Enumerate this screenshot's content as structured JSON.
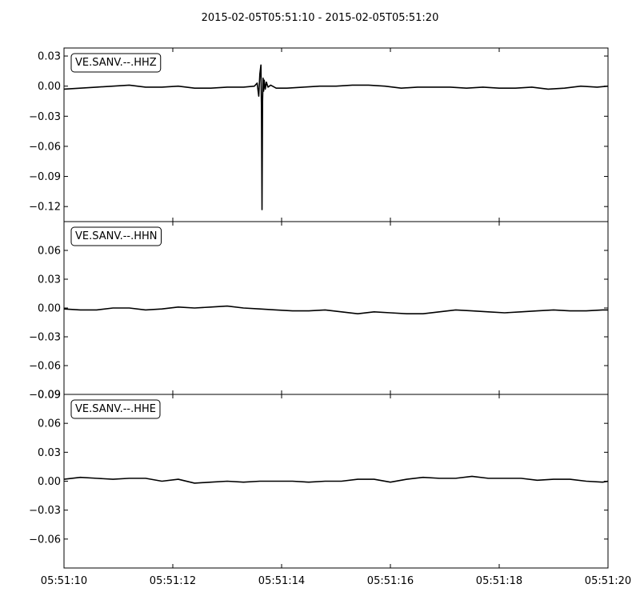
{
  "figure": {
    "title": "2015-02-05T05:51:10  -  2015-02-05T05:51:20",
    "x_tick_labels": [
      "05:51:10",
      "05:51:12",
      "05:51:14",
      "05:51:16",
      "05:51:18",
      "05:51:20"
    ]
  },
  "chart_data": [
    {
      "type": "line",
      "label": "VE.SANV.--.HHZ",
      "ylim": [
        -0.135,
        0.038
      ],
      "y_ticks": [
        0.03,
        0.0,
        -0.03,
        -0.06,
        -0.09,
        -0.12
      ],
      "y_tick_labels": [
        "0.03",
        "0.00",
        "−0.03",
        "−0.06",
        "−0.09",
        "−0.12"
      ],
      "xlim": [
        0,
        10
      ],
      "grid": false,
      "series": [
        {
          "color": "#000000",
          "x": [
            0,
            0.3,
            0.6,
            0.9,
            1.2,
            1.5,
            1.8,
            2.1,
            2.4,
            2.7,
            3.0,
            3.3,
            3.5,
            3.55,
            3.58,
            3.6,
            3.62,
            3.63,
            3.64,
            3.65,
            3.66,
            3.67,
            3.68,
            3.7,
            3.72,
            3.75,
            3.8,
            3.9,
            4.1,
            4.4,
            4.7,
            5.0,
            5.3,
            5.6,
            5.9,
            6.2,
            6.5,
            6.8,
            7.1,
            7.4,
            7.7,
            8.0,
            8.3,
            8.6,
            8.9,
            9.2,
            9.5,
            9.8,
            10.0
          ],
          "y": [
            -0.003,
            -0.002,
            -0.001,
            0.0,
            0.001,
            -0.001,
            -0.001,
            0.0,
            -0.002,
            -0.002,
            -0.001,
            -0.001,
            0.0,
            0.003,
            -0.01,
            0.012,
            0.021,
            -0.022,
            -0.123,
            -0.015,
            0.008,
            -0.005,
            0.006,
            -0.003,
            0.004,
            -0.001,
            0.001,
            -0.002,
            -0.002,
            -0.001,
            0.0,
            0.0,
            0.001,
            0.001,
            0.0,
            -0.002,
            -0.001,
            -0.001,
            -0.001,
            -0.002,
            -0.001,
            -0.002,
            -0.002,
            -0.001,
            -0.003,
            -0.002,
            0.0,
            -0.001,
            0.0
          ]
        }
      ]
    },
    {
      "type": "line",
      "label": "VE.SANV.--.HHN",
      "ylim": [
        -0.09,
        0.09
      ],
      "y_ticks": [
        0.06,
        0.03,
        0.0,
        -0.03,
        -0.06,
        -0.09
      ],
      "y_tick_labels": [
        "0.06",
        "0.03",
        "0.00",
        "−0.03",
        "−0.06",
        "−0.09"
      ],
      "xlim": [
        0,
        10
      ],
      "grid": false,
      "series": [
        {
          "color": "#000000",
          "x": [
            0,
            0.3,
            0.6,
            0.9,
            1.2,
            1.5,
            1.8,
            2.1,
            2.4,
            2.7,
            3.0,
            3.3,
            3.6,
            3.9,
            4.2,
            4.5,
            4.8,
            5.1,
            5.4,
            5.7,
            6.0,
            6.3,
            6.6,
            6.9,
            7.2,
            7.5,
            7.8,
            8.1,
            8.4,
            8.7,
            9.0,
            9.3,
            9.6,
            9.9,
            10.0
          ],
          "y": [
            -0.001,
            -0.002,
            -0.002,
            0.0,
            0.0,
            -0.002,
            -0.001,
            0.001,
            0.0,
            0.001,
            0.002,
            0.0,
            -0.001,
            -0.002,
            -0.003,
            -0.003,
            -0.002,
            -0.004,
            -0.006,
            -0.004,
            -0.005,
            -0.006,
            -0.006,
            -0.004,
            -0.002,
            -0.003,
            -0.004,
            -0.005,
            -0.004,
            -0.003,
            -0.002,
            -0.003,
            -0.003,
            -0.002,
            -0.002
          ]
        }
      ]
    },
    {
      "type": "line",
      "label": "VE.SANV.--.HHE",
      "ylim": [
        -0.09,
        0.09
      ],
      "y_ticks": [
        0.09,
        0.06,
        0.03,
        0.0,
        -0.03,
        -0.06
      ],
      "y_tick_labels": [
        "0.09",
        "0.06",
        "0.03",
        "0.00",
        "−0.03",
        "−0.06"
      ],
      "xlim": [
        0,
        10
      ],
      "grid": false,
      "series": [
        {
          "color": "#000000",
          "x": [
            0,
            0.3,
            0.6,
            0.9,
            1.2,
            1.5,
            1.8,
            2.1,
            2.4,
            2.7,
            3.0,
            3.3,
            3.6,
            3.9,
            4.2,
            4.5,
            4.8,
            5.1,
            5.4,
            5.7,
            6.0,
            6.3,
            6.6,
            6.9,
            7.2,
            7.5,
            7.8,
            8.1,
            8.4,
            8.7,
            9.0,
            9.3,
            9.6,
            9.9,
            10.0
          ],
          "y": [
            0.002,
            0.004,
            0.003,
            0.002,
            0.003,
            0.003,
            0.0,
            0.002,
            -0.002,
            -0.001,
            0.0,
            -0.001,
            0.0,
            0.0,
            0.0,
            -0.001,
            0.0,
            0.0,
            0.002,
            0.002,
            -0.001,
            0.002,
            0.004,
            0.003,
            0.003,
            0.005,
            0.003,
            0.003,
            0.003,
            0.001,
            0.002,
            0.002,
            0.0,
            -0.001,
            0.0
          ]
        }
      ]
    }
  ]
}
